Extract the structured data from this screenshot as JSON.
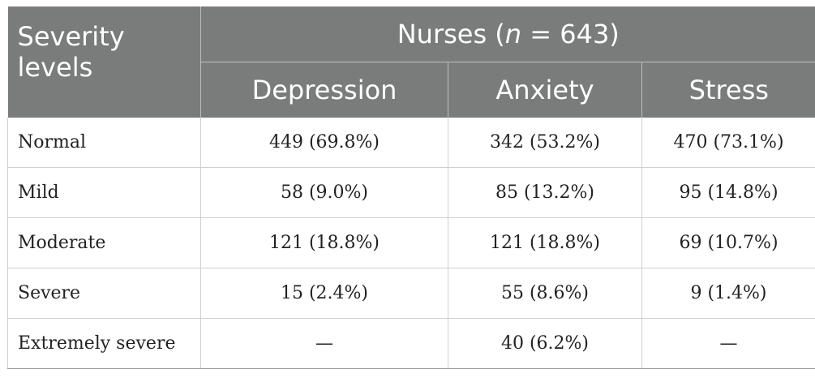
{
  "header": {
    "severity_label_line1": "Severity",
    "severity_label_line2": "levels",
    "group_label_prefix": "Nurses (",
    "group_label_italic": "n",
    "group_label_suffix": " = 643)",
    "columns": [
      "Depression",
      "Anxiety",
      "Stress"
    ]
  },
  "rows": [
    {
      "label": "Normal",
      "values": [
        "449 (69.8%)",
        "342 (53.2%)",
        "470 (73.1%)"
      ]
    },
    {
      "label": "Mild",
      "values": [
        "58 (9.0%)",
        "85 (13.2%)",
        "95 (14.8%)"
      ]
    },
    {
      "label": "Moderate",
      "values": [
        "121 (18.8%)",
        "121 (18.8%)",
        "69 (10.7%)"
      ]
    },
    {
      "label": "Severe",
      "values": [
        "15 (2.4%)",
        "55 (8.6%)",
        "9 (1.4%)"
      ]
    },
    {
      "label": "Extremely severe",
      "values": [
        "—",
        "40 (6.2%)",
        "—"
      ]
    }
  ]
}
